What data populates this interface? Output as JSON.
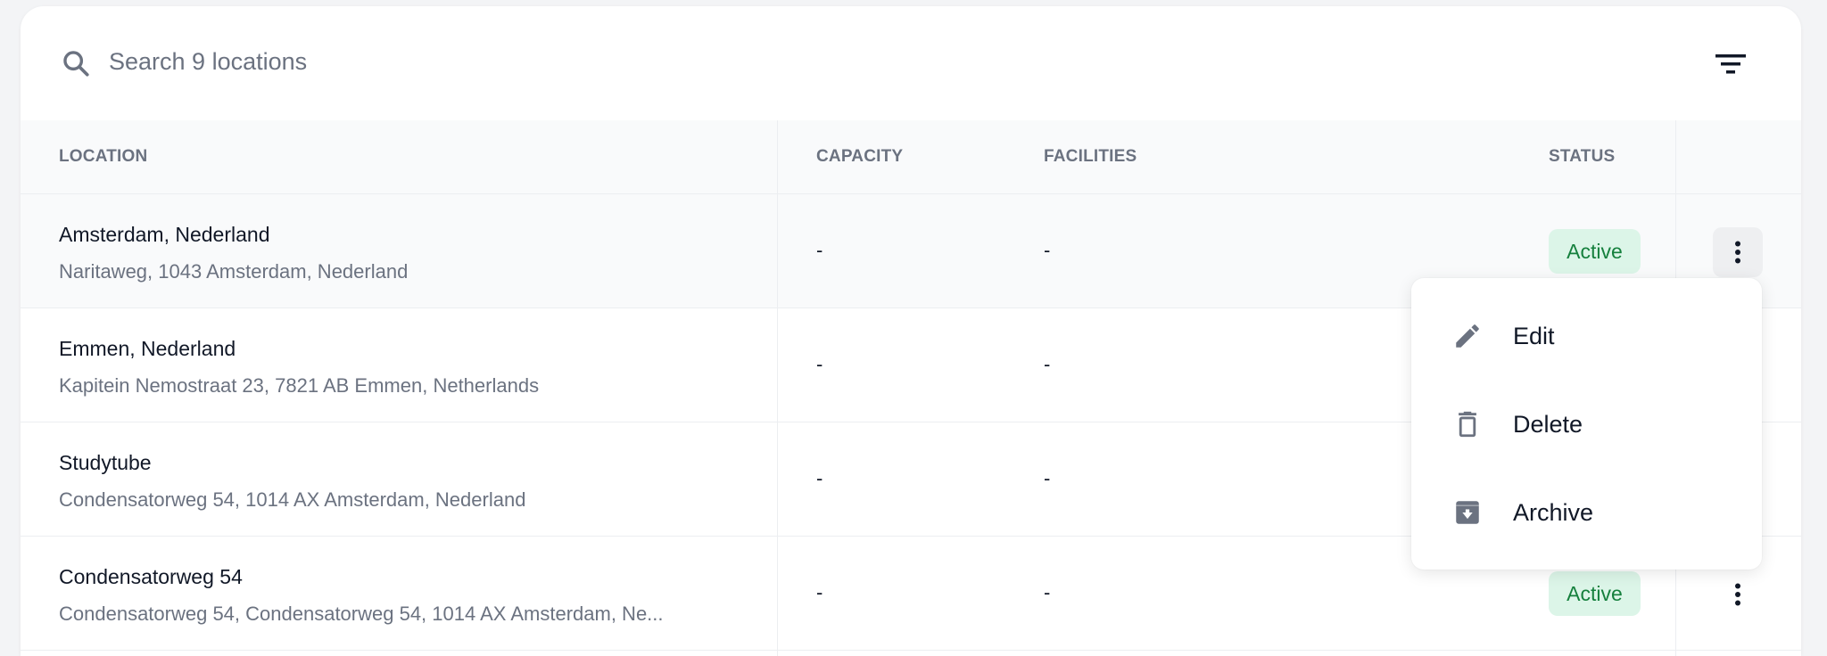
{
  "search": {
    "placeholder": "Search 9 locations",
    "icon": "search-icon"
  },
  "filter": {
    "icon": "filter-icon"
  },
  "table": {
    "headers": {
      "location": "LOCATION",
      "capacity": "CAPACITY",
      "facilities": "FACILITIES",
      "status": "STATUS"
    },
    "rows": [
      {
        "name": "Amsterdam, Nederland",
        "address": "Naritaweg, 1043 Amsterdam, Nederland",
        "capacity": "-",
        "facilities": "-",
        "status": "Active"
      },
      {
        "name": "Emmen, Nederland",
        "address": "Kapitein Nemostraat 23, 7821 AB Emmen, Netherlands",
        "capacity": "-",
        "facilities": "-"
      },
      {
        "name": "Studytube",
        "address": "Condensatorweg 54, 1014 AX Amsterdam, Nederland",
        "capacity": "-",
        "facilities": "-"
      },
      {
        "name": "Condensatorweg 54",
        "address": "Condensatorweg 54, Condensatorweg 54, 1014 AX Amsterdam, Ne...",
        "capacity": "-",
        "facilities": "-",
        "status": "Active"
      }
    ]
  },
  "menu": {
    "items": [
      {
        "label": "Edit",
        "icon": "pencil-icon"
      },
      {
        "label": "Delete",
        "icon": "trash-icon"
      },
      {
        "label": "Archive",
        "icon": "archive-icon"
      }
    ]
  },
  "colors": {
    "status_active_bg": "#dcf5e8",
    "status_active_text": "#15803d",
    "icon_grey": "#6b7280"
  }
}
